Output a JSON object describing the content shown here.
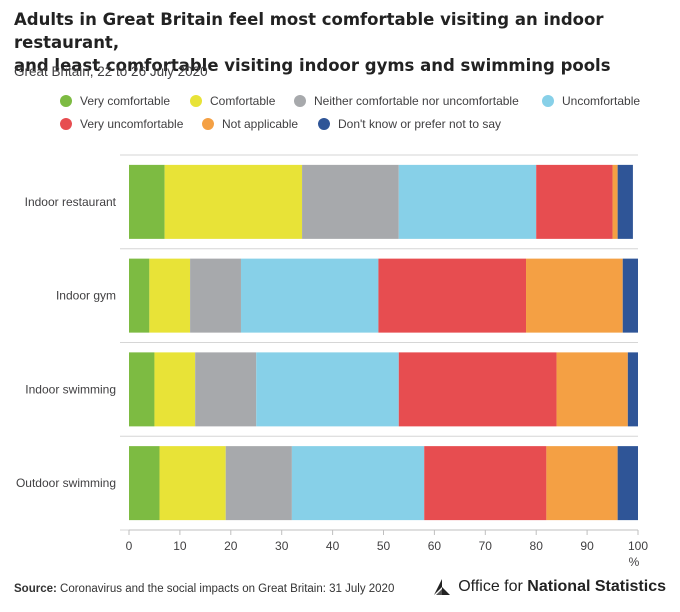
{
  "header": {
    "title_line1": "Adults in Great Britain feel most comfortable visiting an indoor restaurant,",
    "title_line2": "and least comfortable visiting indoor gyms and swimming pools",
    "subtitle": "Great Britain, 22 to 26 July 2020"
  },
  "footer": {
    "source_label": "Source:",
    "source_text": "Coronavirus and the social impacts on Great Britain: 31 July 2020",
    "brand_prefix": "Office for",
    "brand_bold": "National Statistics"
  },
  "colors": {
    "very_comfortable": "#7dbb42",
    "comfortable": "#e8e337",
    "neither": "#a7a9ac",
    "uncomfortable": "#87d0e8",
    "very_uncomfortable": "#e74d50",
    "not_applicable": "#f4a044",
    "dont_know": "#2f5597"
  },
  "chart_data": {
    "type": "bar",
    "orientation": "horizontal",
    "stacked": true,
    "categories": [
      "Indoor restaurant",
      "Indoor gym",
      "Indoor swimming",
      "Outdoor swimming"
    ],
    "series": [
      {
        "name": "Very comfortable",
        "color": "#7dbb42",
        "values": [
          7,
          4,
          5,
          6
        ]
      },
      {
        "name": "Comfortable",
        "color": "#e8e337",
        "values": [
          27,
          8,
          8,
          13
        ]
      },
      {
        "name": "Neither comfortable nor uncomfortable",
        "color": "#a7a9ac",
        "values": [
          19,
          10,
          12,
          13
        ]
      },
      {
        "name": "Uncomfortable",
        "color": "#87d0e8",
        "values": [
          27,
          27,
          28,
          26
        ]
      },
      {
        "name": "Very uncomfortable",
        "color": "#e74d50",
        "values": [
          15,
          29,
          31,
          24
        ]
      },
      {
        "name": "Not applicable",
        "color": "#f4a044",
        "values": [
          1,
          19,
          14,
          14
        ]
      },
      {
        "name": "Don't know or prefer not to say",
        "color": "#2f5597",
        "values": [
          3,
          3,
          2,
          4
        ]
      }
    ],
    "xlim": [
      0,
      100
    ],
    "xticks": [
      0,
      10,
      20,
      30,
      40,
      50,
      60,
      70,
      80,
      90,
      100
    ],
    "xlabel": "%",
    "grid": true,
    "legend_position": "top"
  }
}
